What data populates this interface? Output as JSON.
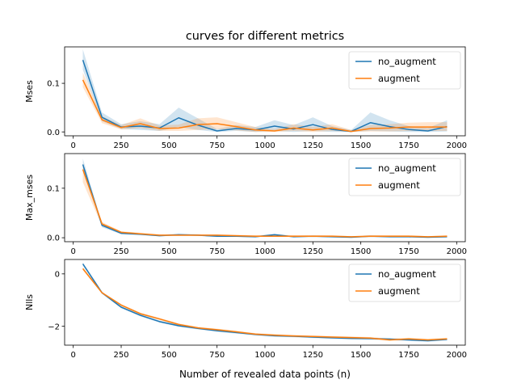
{
  "figure_title": "curves for different metrics",
  "xlabel": "Number of revealed data points (n)",
  "colors": {
    "no_augment": "#1f77b4",
    "augment": "#ff7f0e"
  },
  "chart_data": [
    {
      "type": "line",
      "title": "curves for different metrics",
      "ylabel": "Mses",
      "xlim": [
        -45,
        2045
      ],
      "ylim": [
        -0.008,
        0.175
      ],
      "xticks": [
        0,
        250,
        500,
        750,
        1000,
        1250,
        1500,
        1750,
        2000
      ],
      "yticks": [
        0.0,
        0.1
      ],
      "ytick_labels": [
        "0.0",
        "0.1"
      ],
      "legend_position": "upper right",
      "x": [
        50,
        150,
        250,
        350,
        450,
        550,
        650,
        750,
        850,
        950,
        1050,
        1150,
        1250,
        1350,
        1450,
        1550,
        1650,
        1750,
        1850,
        1950
      ],
      "series": [
        {
          "name": "no_augment",
          "values": [
            0.148,
            0.03,
            0.01,
            0.012,
            0.008,
            0.029,
            0.014,
            0.002,
            0.007,
            0.004,
            0.012,
            0.006,
            0.015,
            0.005,
            0.001,
            0.019,
            0.011,
            0.005,
            0.002,
            0.011
          ],
          "lower": [
            0.128,
            0.022,
            0.006,
            0.004,
            0.002,
            0.01,
            0.004,
            0.0,
            0.002,
            0.0,
            0.002,
            0.0,
            0.002,
            0.0,
            0.0,
            0.002,
            0.001,
            0.0,
            0.0,
            0.001
          ],
          "upper": [
            0.17,
            0.04,
            0.016,
            0.022,
            0.016,
            0.05,
            0.028,
            0.006,
            0.014,
            0.01,
            0.024,
            0.014,
            0.03,
            0.012,
            0.004,
            0.04,
            0.024,
            0.012,
            0.008,
            0.024
          ]
        },
        {
          "name": "augment",
          "values": [
            0.107,
            0.025,
            0.009,
            0.017,
            0.007,
            0.008,
            0.015,
            0.017,
            0.011,
            0.004,
            0.002,
            0.008,
            0.004,
            0.008,
            0.001,
            0.007,
            0.008,
            0.01,
            0.01,
            0.01
          ],
          "lower": [
            0.092,
            0.018,
            0.005,
            0.008,
            0.002,
            0.002,
            0.004,
            0.006,
            0.003,
            0.0,
            0.0,
            0.002,
            0.0,
            0.002,
            0.0,
            0.001,
            0.001,
            0.002,
            0.002,
            0.002
          ],
          "upper": [
            0.122,
            0.032,
            0.014,
            0.028,
            0.013,
            0.015,
            0.028,
            0.03,
            0.02,
            0.01,
            0.006,
            0.016,
            0.01,
            0.016,
            0.004,
            0.014,
            0.016,
            0.019,
            0.02,
            0.02
          ]
        }
      ]
    },
    {
      "type": "line",
      "title": "",
      "ylabel": "Max_mses",
      "xlim": [
        -45,
        2045
      ],
      "ylim": [
        -0.008,
        0.17
      ],
      "xticks": [
        0,
        250,
        500,
        750,
        1000,
        1250,
        1500,
        1750,
        2000
      ],
      "yticks": [
        0.0,
        0.1
      ],
      "ytick_labels": [
        "0.0",
        "0.1"
      ],
      "legend_position": "upper right",
      "x": [
        50,
        150,
        250,
        350,
        450,
        550,
        650,
        750,
        850,
        950,
        1050,
        1150,
        1250,
        1350,
        1450,
        1550,
        1650,
        1750,
        1850,
        1950
      ],
      "series": [
        {
          "name": "no_augment",
          "values": [
            0.148,
            0.025,
            0.009,
            0.007,
            0.004,
            0.006,
            0.005,
            0.003,
            0.003,
            0.002,
            0.006,
            0.002,
            0.003,
            0.002,
            0.001,
            0.003,
            0.002,
            0.002,
            0.001,
            0.002
          ],
          "lower": [
            0.138,
            0.021,
            0.007,
            0.005,
            0.003,
            0.004,
            0.004,
            0.002,
            0.002,
            0.001,
            0.004,
            0.001,
            0.002,
            0.001,
            0.0,
            0.002,
            0.001,
            0.001,
            0.0,
            0.001
          ],
          "upper": [
            0.16,
            0.029,
            0.011,
            0.009,
            0.006,
            0.008,
            0.007,
            0.005,
            0.005,
            0.004,
            0.008,
            0.004,
            0.005,
            0.004,
            0.002,
            0.005,
            0.004,
            0.004,
            0.002,
            0.004
          ]
        },
        {
          "name": "augment",
          "values": [
            0.138,
            0.028,
            0.011,
            0.008,
            0.005,
            0.005,
            0.005,
            0.005,
            0.004,
            0.003,
            0.003,
            0.003,
            0.003,
            0.003,
            0.002,
            0.003,
            0.003,
            0.003,
            0.002,
            0.003
          ],
          "lower": [
            0.112,
            0.024,
            0.009,
            0.006,
            0.004,
            0.004,
            0.004,
            0.004,
            0.003,
            0.002,
            0.002,
            0.002,
            0.002,
            0.002,
            0.001,
            0.002,
            0.002,
            0.002,
            0.001,
            0.002
          ],
          "upper": [
            0.15,
            0.032,
            0.013,
            0.01,
            0.007,
            0.007,
            0.007,
            0.007,
            0.006,
            0.005,
            0.005,
            0.005,
            0.005,
            0.005,
            0.003,
            0.005,
            0.005,
            0.005,
            0.003,
            0.005
          ]
        }
      ]
    },
    {
      "type": "line",
      "title": "",
      "ylabel": "Nlls",
      "xlim": [
        -45,
        2045
      ],
      "ylim": [
        -2.72,
        0.55
      ],
      "xticks": [
        0,
        250,
        500,
        750,
        1000,
        1250,
        1500,
        1750,
        2000
      ],
      "yticks": [
        0,
        -2
      ],
      "ytick_labels": [
        "0",
        "−2"
      ],
      "legend_position": "upper right",
      "x": [
        50,
        150,
        250,
        350,
        450,
        550,
        650,
        750,
        850,
        950,
        1050,
        1150,
        1250,
        1350,
        1450,
        1550,
        1650,
        1750,
        1850,
        1950
      ],
      "series": [
        {
          "name": "no_augment",
          "values": [
            0.38,
            -0.72,
            -1.27,
            -1.58,
            -1.82,
            -1.98,
            -2.08,
            -2.17,
            -2.24,
            -2.31,
            -2.36,
            -2.38,
            -2.41,
            -2.44,
            -2.46,
            -2.47,
            -2.49,
            -2.52,
            -2.55,
            -2.5
          ],
          "lower": [
            0.32,
            -0.76,
            -1.31,
            -1.62,
            -1.86,
            -2.02,
            -2.12,
            -2.21,
            -2.28,
            -2.35,
            -2.4,
            -2.42,
            -2.45,
            -2.48,
            -2.5,
            -2.51,
            -2.53,
            -2.56,
            -2.59,
            -2.54
          ],
          "upper": [
            0.44,
            -0.68,
            -1.23,
            -1.54,
            -1.78,
            -1.94,
            -2.04,
            -2.13,
            -2.2,
            -2.27,
            -2.32,
            -2.34,
            -2.37,
            -2.4,
            -2.42,
            -2.43,
            -2.45,
            -2.48,
            -2.51,
            -2.46
          ]
        },
        {
          "name": "augment",
          "values": [
            0.2,
            -0.72,
            -1.19,
            -1.52,
            -1.72,
            -1.93,
            -2.06,
            -2.13,
            -2.21,
            -2.3,
            -2.34,
            -2.37,
            -2.39,
            -2.41,
            -2.43,
            -2.45,
            -2.52,
            -2.48,
            -2.52,
            -2.48
          ],
          "lower": [
            0.14,
            -0.76,
            -1.23,
            -1.56,
            -1.76,
            -1.97,
            -2.1,
            -2.17,
            -2.25,
            -2.34,
            -2.38,
            -2.41,
            -2.43,
            -2.45,
            -2.47,
            -2.49,
            -2.56,
            -2.52,
            -2.56,
            -2.52
          ],
          "upper": [
            0.26,
            -0.68,
            -1.15,
            -1.48,
            -1.68,
            -1.89,
            -2.02,
            -2.09,
            -2.17,
            -2.26,
            -2.3,
            -2.33,
            -2.35,
            -2.37,
            -2.39,
            -2.41,
            -2.48,
            -2.44,
            -2.48,
            -2.44
          ]
        }
      ]
    }
  ]
}
